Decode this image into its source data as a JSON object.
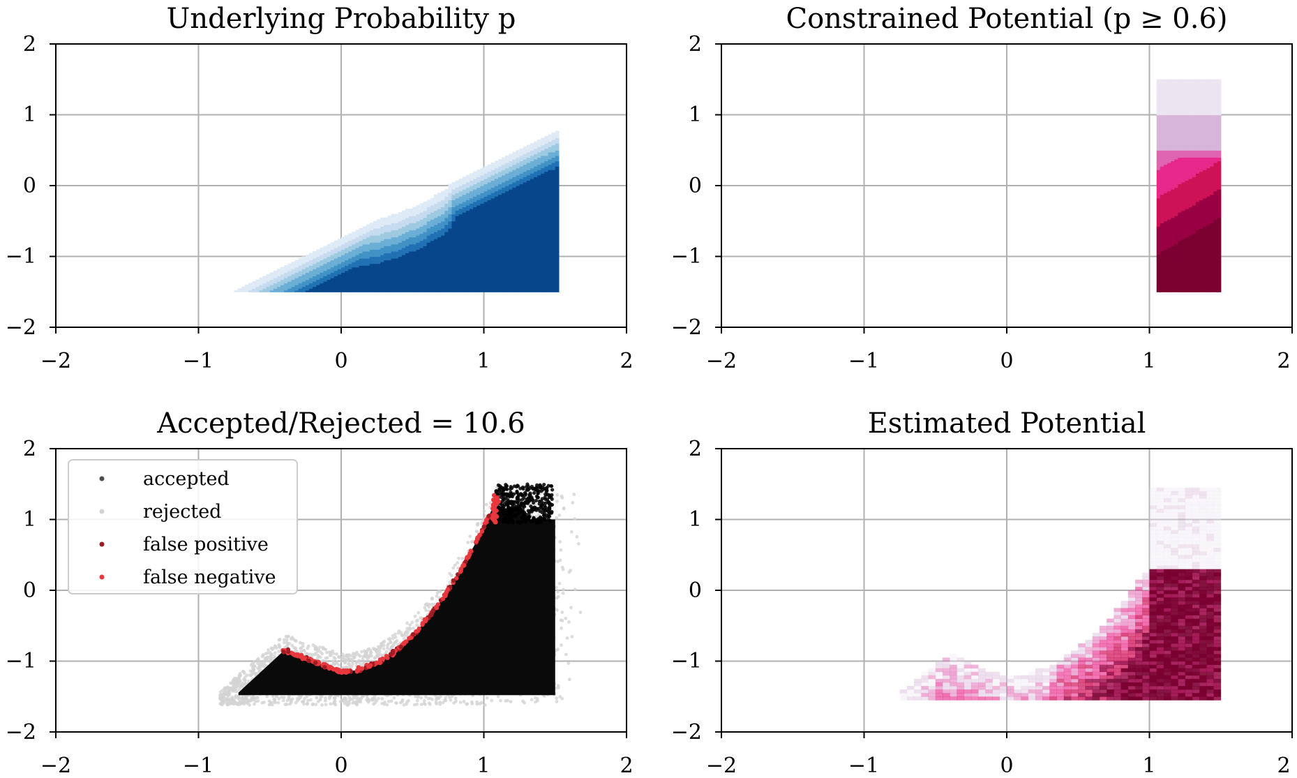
{
  "chart_data": [
    {
      "type": "contour",
      "title": "Underlying Probability p",
      "xlim": [
        -2,
        2
      ],
      "ylim": [
        -2,
        2
      ],
      "xticks": [
        "−2",
        "−1",
        "0",
        "1",
        "2"
      ],
      "yticks": [
        "2",
        "1",
        "0",
        "−1",
        "−2"
      ],
      "grid": true,
      "colormap": "Blues",
      "colors": [
        "#deebf7",
        "#c6dbef",
        "#9ecae1",
        "#6baed6",
        "#4292c6",
        "#2171b5",
        "#08468b"
      ],
      "region": {
        "x": [
          -0.75,
          1.5
        ],
        "y": [
          -1.5,
          1.5
        ]
      },
      "description_levels": [
        0.0,
        0.15,
        0.3,
        0.45,
        0.6,
        0.75,
        0.9
      ]
    },
    {
      "type": "contour",
      "title": "Constrained Potential (p ≥ 0.6)",
      "xlim": [
        -2,
        2
      ],
      "ylim": [
        -2,
        2
      ],
      "xticks": [
        "−2",
        "−1",
        "0",
        "1",
        "2"
      ],
      "yticks": [
        "2",
        "1",
        "0",
        "−1",
        "−2"
      ],
      "grid": true,
      "colormap": "PuRd",
      "colors": [
        "#ece4f0",
        "#d7b5d8",
        "#df65b0",
        "#e7298a",
        "#ce1256",
        "#980043",
        "#7a0030"
      ],
      "region": {
        "x": [
          -0.75,
          1.5
        ],
        "y": [
          -1.5,
          1.5
        ]
      }
    },
    {
      "type": "scatter",
      "title": "Accepted/Rejected = 10.6",
      "xlim": [
        -2,
        2
      ],
      "ylim": [
        -2,
        2
      ],
      "xticks": [
        "−2",
        "−1",
        "0",
        "1",
        "2"
      ],
      "yticks": [
        "2",
        "1",
        "0",
        "−1",
        "−2"
      ],
      "grid": true,
      "legend_placement": "upper-left",
      "series": [
        {
          "name": "accepted",
          "color": "#000000"
        },
        {
          "name": "rejected",
          "color": "#d3d3d3"
        },
        {
          "name": "false positive",
          "color": "#a01c24"
        },
        {
          "name": "false negative",
          "color": "#e8383d"
        }
      ]
    },
    {
      "type": "heatmap",
      "title": "Estimated Potential",
      "xlim": [
        -2,
        2
      ],
      "ylim": [
        -2,
        2
      ],
      "xticks": [
        "−2",
        "−1",
        "0",
        "1",
        "2"
      ],
      "yticks": [
        "2",
        "1",
        "0",
        "−1",
        "−2"
      ],
      "grid": true,
      "colormap": "PuRd"
    }
  ]
}
